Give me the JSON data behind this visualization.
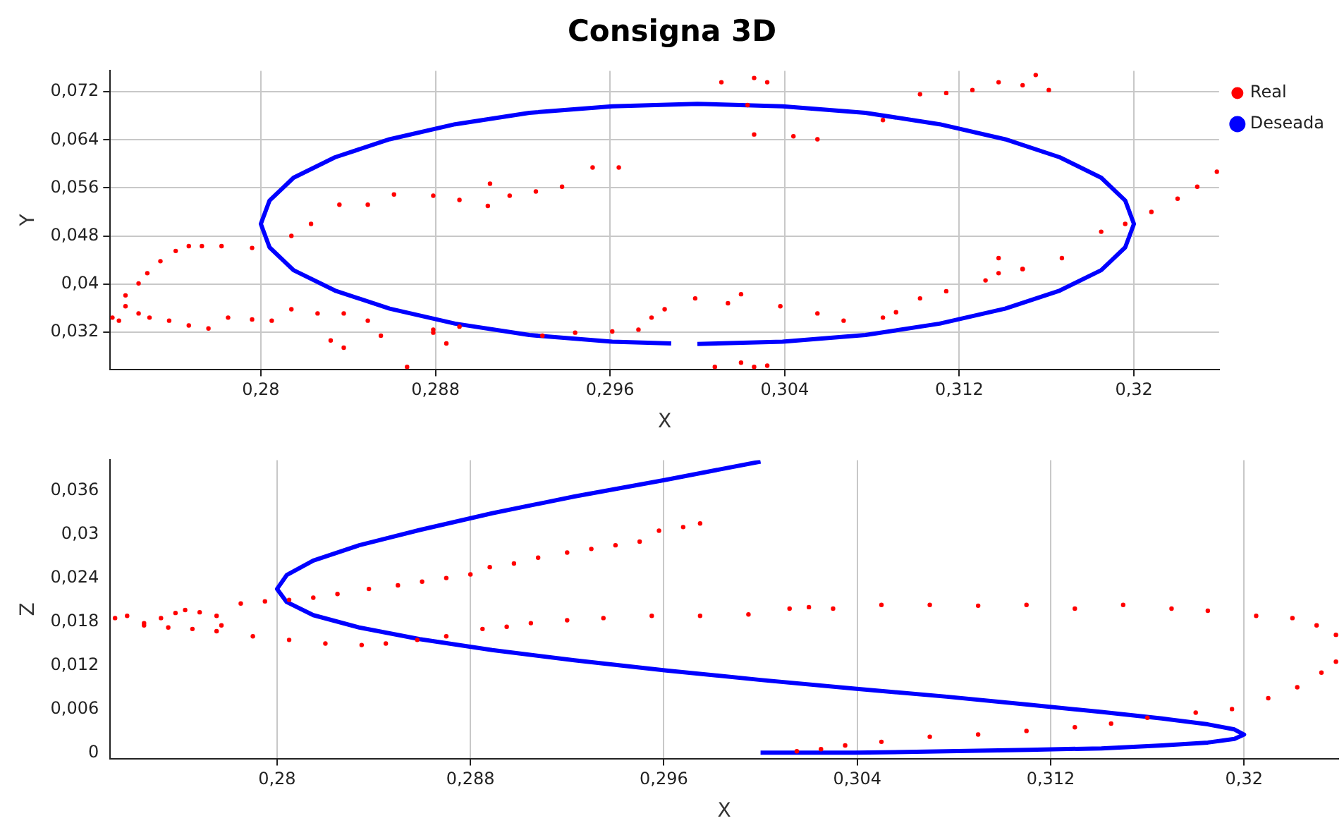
{
  "chart_data": [
    {
      "type": "line",
      "title": "Consigna 3D",
      "xlabel": "X",
      "ylabel": "Y",
      "xlim": [
        0.2731,
        0.3239
      ],
      "ylim": [
        0.0258,
        0.0755
      ],
      "xticks": [
        {
          "value": 0.28,
          "label": "0,28"
        },
        {
          "value": 0.288,
          "label": "0,288"
        },
        {
          "value": 0.296,
          "label": "0,296"
        },
        {
          "value": 0.304,
          "label": "0,304"
        },
        {
          "value": 0.312,
          "label": "0,312"
        },
        {
          "value": 0.32,
          "label": "0,32"
        }
      ],
      "yticks": [
        {
          "value": 0.032,
          "label": "0,032"
        },
        {
          "value": 0.04,
          "label": "0,04"
        },
        {
          "value": 0.048,
          "label": "0,048"
        },
        {
          "value": 0.056,
          "label": "0,056"
        },
        {
          "value": 0.064,
          "label": "0,064"
        },
        {
          "value": 0.072,
          "label": "0,072"
        }
      ],
      "grid": true,
      "legend": "top right",
      "series": [
        {
          "name": "Deseada",
          "color": "#0000ff",
          "x": [
            0.3,
            0.3039,
            0.3077,
            0.3111,
            0.3141,
            0.3166,
            0.3185,
            0.3196,
            0.32,
            0.3196,
            0.3185,
            0.3166,
            0.3141,
            0.3111,
            0.3077,
            0.3039,
            0.3,
            0.2961,
            0.2923,
            0.2889,
            0.2859,
            0.2834,
            0.2815,
            0.2804,
            0.28,
            0.2804,
            0.2815,
            0.2834,
            0.2859,
            0.2889,
            0.2923,
            0.2961,
            0.2988
          ],
          "values": [
            0.03,
            0.0304,
            0.0315,
            0.0334,
            0.0359,
            0.0389,
            0.0423,
            0.0461,
            0.05,
            0.0539,
            0.0577,
            0.0611,
            0.0641,
            0.0666,
            0.0685,
            0.0696,
            0.07,
            0.0696,
            0.0685,
            0.0666,
            0.0641,
            0.0611,
            0.0577,
            0.0539,
            0.05,
            0.0461,
            0.0423,
            0.0389,
            0.0359,
            0.0334,
            0.0315,
            0.0304,
            0.0301
          ]
        },
        {
          "name": "Real",
          "type": "scatter",
          "color": "#ff0000",
          "x": [
            0.2732,
            0.2735,
            0.2738,
            0.2744,
            0.2749,
            0.2758,
            0.2767,
            0.2776,
            0.2738,
            0.2744,
            0.2748,
            0.2754,
            0.2761,
            0.2767,
            0.2773,
            0.2782,
            0.2796,
            0.2785,
            0.2796,
            0.2805,
            0.2814,
            0.2823,
            0.2836,
            0.2849,
            0.2861,
            0.2879,
            0.2891,
            0.2904,
            0.2814,
            0.2826,
            0.2838,
            0.2849,
            0.2832,
            0.2838,
            0.2855,
            0.2879,
            0.2885,
            0.2891,
            0.2867,
            0.2879,
            0.2905,
            0.2914,
            0.2926,
            0.2938,
            0.2952,
            0.2964,
            0.2929,
            0.2944,
            0.2961,
            0.2973,
            0.2979,
            0.2985,
            0.2999,
            0.3014,
            0.302,
            0.3008,
            0.302,
            0.3026,
            0.3032,
            0.3011,
            0.3026,
            0.3032,
            0.3023,
            0.3026,
            0.3044,
            0.3055,
            0.3038,
            0.3055,
            0.3067,
            0.3085,
            0.3091,
            0.3102,
            0.3114,
            0.3132,
            0.3149,
            0.3167,
            0.3085,
            0.3102,
            0.3114,
            0.3126,
            0.3138,
            0.3149,
            0.3161,
            0.3155,
            0.3138,
            0.3138,
            0.3149,
            0.3185,
            0.3196,
            0.3208,
            0.322,
            0.3229,
            0.3238
          ],
          "values": [
            0.0344,
            0.0339,
            0.0363,
            0.0351,
            0.0344,
            0.0339,
            0.0331,
            0.0326,
            0.0381,
            0.0401,
            0.0418,
            0.0438,
            0.0455,
            0.0463,
            0.0463,
            0.0463,
            0.046,
            0.0344,
            0.0341,
            0.0339,
            0.048,
            0.05,
            0.0532,
            0.0532,
            0.0549,
            0.0547,
            0.054,
            0.053,
            0.0358,
            0.0351,
            0.0351,
            0.0339,
            0.0306,
            0.0294,
            0.0314,
            0.0324,
            0.0301,
            0.0329,
            0.0262,
            0.0319,
            0.0567,
            0.0547,
            0.0554,
            0.0562,
            0.0594,
            0.0594,
            0.0314,
            0.0319,
            0.0321,
            0.0324,
            0.0344,
            0.0358,
            0.0376,
            0.0368,
            0.0383,
            0.0262,
            0.0269,
            0.0262,
            0.0264,
            0.0736,
            0.0743,
            0.0736,
            0.0698,
            0.0649,
            0.0646,
            0.0641,
            0.0363,
            0.0351,
            0.0339,
            0.0344,
            0.0353,
            0.0376,
            0.0388,
            0.0406,
            0.0425,
            0.0443,
            0.0673,
            0.0716,
            0.0718,
            0.0723,
            0.0736,
            0.0731,
            0.0723,
            0.0748,
            0.0443,
            0.0418,
            0.0425,
            0.0487,
            0.05,
            0.052,
            0.0542,
            0.0562,
            0.0587
          ]
        }
      ]
    },
    {
      "type": "line",
      "xlabel": "X",
      "ylabel": "Z",
      "xlim": [
        0.2731,
        0.3239
      ],
      "ylim": [
        -0.0008,
        0.0402
      ],
      "xticks": [
        {
          "value": 0.28,
          "label": "0,28"
        },
        {
          "value": 0.288,
          "label": "0,288"
        },
        {
          "value": 0.296,
          "label": "0,296"
        },
        {
          "value": 0.304,
          "label": "0,304"
        },
        {
          "value": 0.312,
          "label": "0,312"
        },
        {
          "value": 0.32,
          "label": "0,32"
        }
      ],
      "yticks": [
        0,
        {
          "value": 0.006,
          "label": "0,006"
        },
        {
          "value": 0.012,
          "label": "0,012"
        },
        {
          "value": 0.018,
          "label": "0,018"
        },
        {
          "value": 0.024,
          "label": "0,024"
        },
        {
          "value": 0.03,
          "label": "0,03"
        },
        {
          "value": 0.036,
          "label": "0,036"
        }
      ],
      "grid": "x",
      "series": [
        {
          "color": "#0000ff",
          "x": [
            0.3,
            0.3039,
            0.3077,
            0.3111,
            0.3141,
            0.3166,
            0.3185,
            0.3196,
            0.32,
            0.3196,
            0.3185,
            0.3166,
            0.3141,
            0.3111,
            0.3077,
            0.3039,
            0.3,
            0.2961,
            0.2923,
            0.2889,
            0.2859,
            0.2834,
            0.2815,
            0.2804,
            0.28,
            0.2804,
            0.2815,
            0.2834,
            0.2859,
            0.2889,
            0.2923,
            0.2961,
            0.3
          ],
          "values": [
            0,
            0,
            0.0002,
            0.0004,
            0.0006,
            0.001,
            0.0014,
            0.0019,
            0.0025,
            0.0032,
            0.0039,
            0.0047,
            0.0056,
            0.0066,
            0.0077,
            0.0088,
            0.01,
            0.0113,
            0.0127,
            0.0141,
            0.0156,
            0.0172,
            0.0189,
            0.0207,
            0.0225,
            0.0244,
            0.0264,
            0.0285,
            0.0306,
            0.0329,
            0.0352,
            0.0375,
            0.04
          ]
        },
        {
          "type": "scatter",
          "color": "#ff0000",
          "x": [
            0.2733,
            0.2738,
            0.2745,
            0.2752,
            0.2758,
            0.2762,
            0.2768,
            0.2775,
            0.2777,
            0.2765,
            0.2755,
            0.2745,
            0.2785,
            0.2795,
            0.2805,
            0.2815,
            0.2825,
            0.2838,
            0.285,
            0.286,
            0.287,
            0.288,
            0.2888,
            0.2898,
            0.2908,
            0.292,
            0.293,
            0.294,
            0.295,
            0.2958,
            0.2968,
            0.2975,
            0.2775,
            0.279,
            0.2805,
            0.282,
            0.2835,
            0.2845,
            0.2858,
            0.287,
            0.2885,
            0.2895,
            0.2905,
            0.292,
            0.2935,
            0.2955,
            0.2975,
            0.2995,
            0.3012,
            0.302,
            0.303,
            0.305,
            0.307,
            0.309,
            0.311,
            0.313,
            0.315,
            0.317,
            0.3185,
            0.3205,
            0.322,
            0.323,
            0.3238,
            0.3238,
            0.3232,
            0.3222,
            0.321,
            0.3195,
            0.318,
            0.316,
            0.3145,
            0.313,
            0.311,
            0.309,
            0.307,
            0.305,
            0.3035,
            0.3025,
            0.3015
          ],
          "values": [
            0.0185,
            0.0188,
            0.0178,
            0.0185,
            0.0192,
            0.0196,
            0.0193,
            0.0188,
            0.0175,
            0.017,
            0.0172,
            0.0175,
            0.0205,
            0.0208,
            0.021,
            0.0213,
            0.0218,
            0.0225,
            0.023,
            0.0235,
            0.024,
            0.0245,
            0.0255,
            0.026,
            0.0268,
            0.0275,
            0.028,
            0.0285,
            0.029,
            0.0305,
            0.031,
            0.0315,
            0.0167,
            0.016,
            0.0155,
            0.015,
            0.0148,
            0.015,
            0.0155,
            0.016,
            0.017,
            0.0173,
            0.0178,
            0.0182,
            0.0185,
            0.0188,
            0.0188,
            0.019,
            0.0198,
            0.02,
            0.0198,
            0.0203,
            0.0203,
            0.0202,
            0.0203,
            0.0198,
            0.0203,
            0.0198,
            0.0195,
            0.0188,
            0.0185,
            0.0175,
            0.0162,
            0.0125,
            0.011,
            0.009,
            0.0075,
            0.006,
            0.0055,
            0.0048,
            0.004,
            0.0035,
            0.003,
            0.0025,
            0.0022,
            0.0015,
            0.001,
            0.0005,
            0.0002
          ]
        }
      ]
    }
  ]
}
